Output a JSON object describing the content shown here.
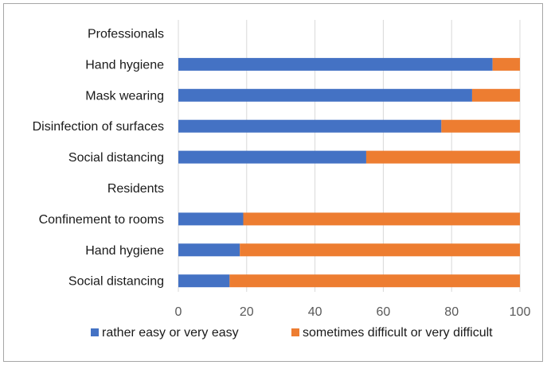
{
  "chart_data": {
    "type": "bar",
    "stacked": true,
    "orientation": "horizontal",
    "title": "",
    "xlabel": "",
    "ylabel": "",
    "xlim": [
      0,
      100
    ],
    "x_ticks": [
      0,
      20,
      40,
      60,
      80,
      100
    ],
    "grid": "vertical",
    "legend_position": "bottom",
    "categories": [
      "Professionals",
      "Hand hygiene",
      "Mask wearing",
      "Disinfection of surfaces",
      "Social distancing",
      "Residents",
      "Confinement to rooms",
      "Hand hygiene",
      "Social distancing"
    ],
    "series": [
      {
        "name": "rather easy or very easy",
        "color": "#4472c4",
        "values": [
          null,
          92,
          86,
          77,
          55,
          null,
          19,
          18,
          15
        ]
      },
      {
        "name": "sometimes difficult or very difficult",
        "color": "#ed7d31",
        "values": [
          null,
          8,
          14,
          23,
          45,
          null,
          81,
          82,
          85
        ]
      }
    ]
  }
}
